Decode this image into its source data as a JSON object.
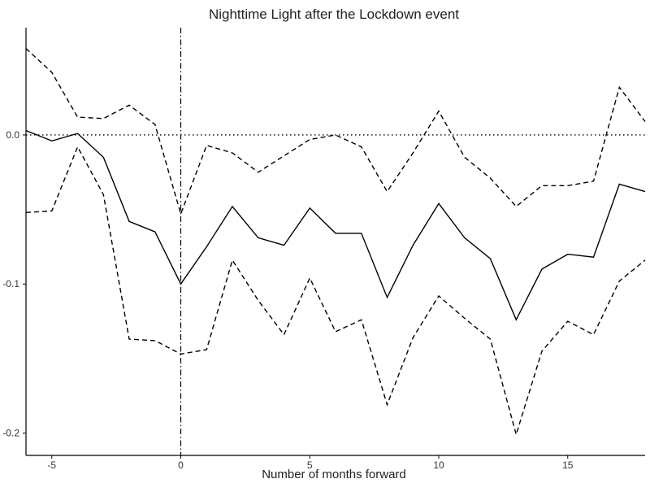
{
  "chart_data": {
    "type": "line",
    "title": "Nighttime Light after the Lockdown event",
    "xlabel": "Number of months forward",
    "ylabel": "",
    "xlim": [
      -6,
      18
    ],
    "ylim": [
      -0.215,
      0.072
    ],
    "x_ticks": [
      -5,
      0,
      5,
      10,
      15
    ],
    "x_tick_labels": [
      "-5",
      "0",
      "5",
      "10",
      "15"
    ],
    "y_ticks": [
      0.0,
      -0.1,
      -0.2
    ],
    "y_tick_labels": [
      "0.0",
      "-0.1",
      "-0.2"
    ],
    "reference_lines": {
      "horizontal_y": 0.0,
      "horizontal_style": "dotted",
      "vertical_x": 0,
      "vertical_style": "dash-dot"
    },
    "grid": false,
    "x": [
      -6,
      -5,
      -4,
      -3,
      -2,
      -1,
      0,
      1,
      2,
      3,
      4,
      5,
      6,
      7,
      8,
      9,
      10,
      11,
      12,
      13,
      14,
      15,
      16,
      17,
      18
    ],
    "series": [
      {
        "role": "estimate",
        "style": "solid",
        "values": [
          0.003,
          -0.004,
          0.001,
          -0.015,
          -0.058,
          -0.065,
          -0.1,
          -0.075,
          -0.048,
          -0.069,
          -0.074,
          -0.049,
          -0.066,
          -0.066,
          -0.109,
          -0.074,
          -0.046,
          -0.069,
          -0.083,
          -0.124,
          -0.09,
          -0.08,
          -0.082,
          -0.033,
          -0.038
        ]
      },
      {
        "role": "upper-bound",
        "style": "dashed",
        "values": [
          0.058,
          0.042,
          0.012,
          0.011,
          0.02,
          0.007,
          -0.053,
          -0.007,
          -0.012,
          -0.025,
          -0.014,
          -0.003,
          0.0,
          -0.008,
          -0.038,
          -0.012,
          0.016,
          -0.015,
          -0.029,
          -0.048,
          -0.034,
          -0.034,
          -0.031,
          0.032,
          0.009
        ]
      },
      {
        "role": "lower-bound",
        "style": "dashed",
        "values": [
          -0.052,
          -0.051,
          -0.008,
          -0.04,
          -0.137,
          -0.138,
          -0.147,
          -0.144,
          -0.084,
          -0.111,
          -0.134,
          -0.096,
          -0.132,
          -0.124,
          -0.181,
          -0.136,
          -0.108,
          -0.123,
          -0.137,
          -0.201,
          -0.145,
          -0.125,
          -0.134,
          -0.098,
          -0.084
        ]
      }
    ]
  }
}
